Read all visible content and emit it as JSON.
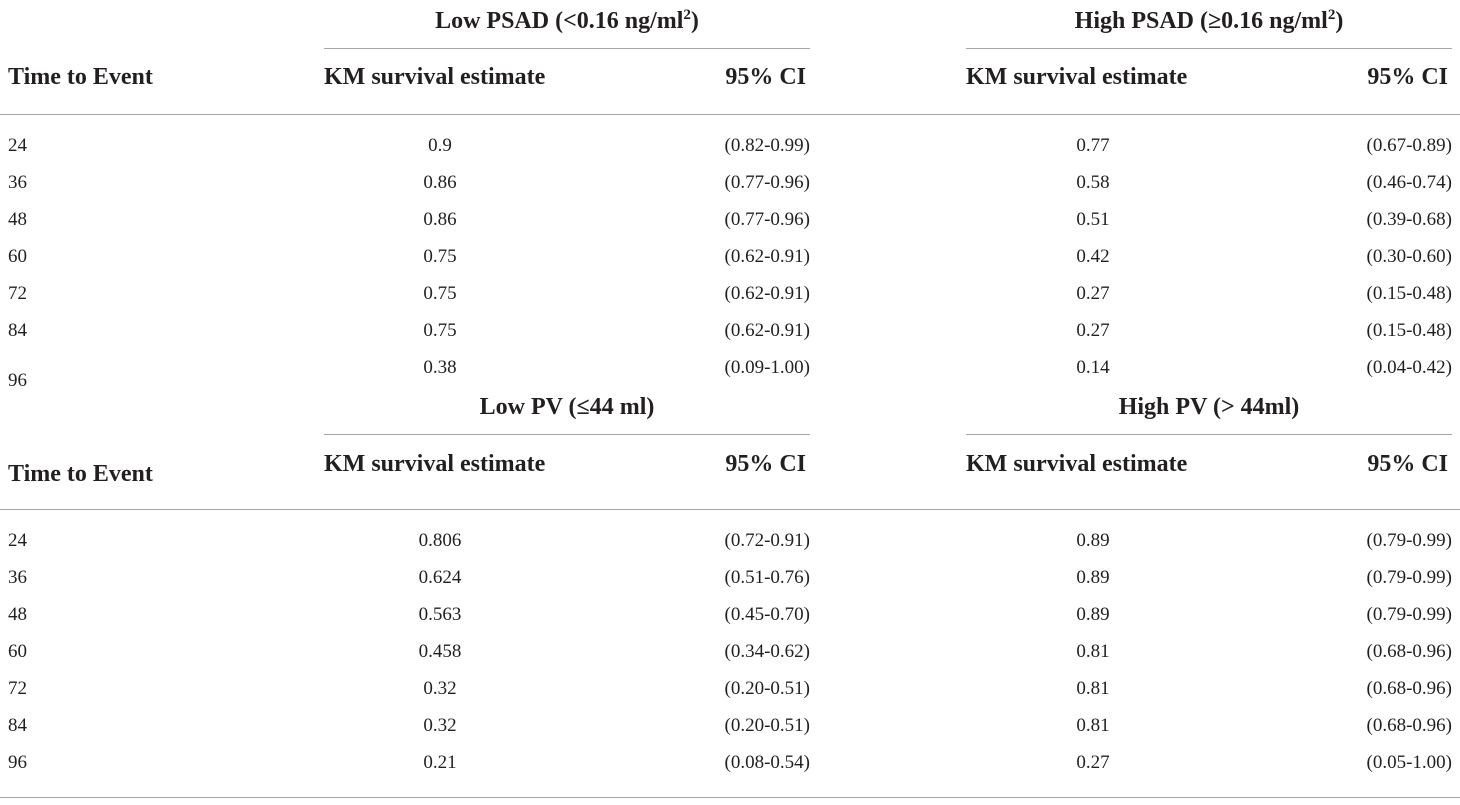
{
  "sections": [
    {
      "row_header": "Time to Event",
      "groups": [
        {
          "label_main": "Low PSAD (<0.16 ng/ml",
          "label_sup": "2",
          "label_end": ")",
          "col1": "KM survival estimate",
          "col2": "95% CI"
        },
        {
          "label_main": "High PSAD (≥0.16 ng/ml",
          "label_sup": "2",
          "label_end": ")",
          "col1": "KM survival estimate",
          "col2": "95% CI"
        }
      ],
      "rows": [
        {
          "time": "24",
          "e1": "0.9",
          "c1": "(0.82-0.99)",
          "e2": "0.77",
          "c2": "(0.67-0.89)"
        },
        {
          "time": "36",
          "e1": "0.86",
          "c1": "(0.77-0.96)",
          "e2": "0.58",
          "c2": "(0.46-0.74)"
        },
        {
          "time": "48",
          "e1": "0.86",
          "c1": "(0.77-0.96)",
          "e2": "0.51",
          "c2": "(0.39-0.68)"
        },
        {
          "time": "60",
          "e1": "0.75",
          "c1": "(0.62-0.91)",
          "e2": "0.42",
          "c2": "(0.30-0.60)"
        },
        {
          "time": "72",
          "e1": "0.75",
          "c1": "(0.62-0.91)",
          "e2": "0.27",
          "c2": "(0.15-0.48)"
        },
        {
          "time": "84",
          "e1": "0.75",
          "c1": "(0.62-0.91)",
          "e2": "0.27",
          "c2": "(0.15-0.48)"
        },
        {
          "time": "96",
          "e1": "0.38",
          "c1": "(0.09-1.00)",
          "e2": "0.14",
          "c2": "(0.04-0.42)"
        }
      ]
    },
    {
      "row_header": "Time to Event",
      "groups": [
        {
          "label_main": "Low PV (≤44 ml)",
          "label_sup": "",
          "label_end": "",
          "col1": "KM survival estimate",
          "col2": "95% CI"
        },
        {
          "label_main": "High PV (> 44ml)",
          "label_sup": "",
          "label_end": "",
          "col1": "KM survival estimate",
          "col2": "95% CI"
        }
      ],
      "rows": [
        {
          "time": "24",
          "e1": "0.806",
          "c1": "(0.72-0.91)",
          "e2": "0.89",
          "c2": "(0.79-0.99)"
        },
        {
          "time": "36",
          "e1": "0.624",
          "c1": "(0.51-0.76)",
          "e2": "0.89",
          "c2": "(0.79-0.99)"
        },
        {
          "time": "48",
          "e1": "0.563",
          "c1": "(0.45-0.70)",
          "e2": "0.89",
          "c2": "(0.79-0.99)"
        },
        {
          "time": "60",
          "e1": "0.458",
          "c1": "(0.34-0.62)",
          "e2": "0.81",
          "c2": "(0.68-0.96)"
        },
        {
          "time": "72",
          "e1": "0.32",
          "c1": "(0.20-0.51)",
          "e2": "0.81",
          "c2": "(0.68-0.96)"
        },
        {
          "time": "84",
          "e1": "0.32",
          "c1": "(0.20-0.51)",
          "e2": "0.81",
          "c2": "(0.68-0.96)"
        },
        {
          "time": "96",
          "e1": "0.21",
          "c1": "(0.08-0.54)",
          "e2": "0.27",
          "c2": "(0.05-1.00)"
        }
      ]
    }
  ]
}
